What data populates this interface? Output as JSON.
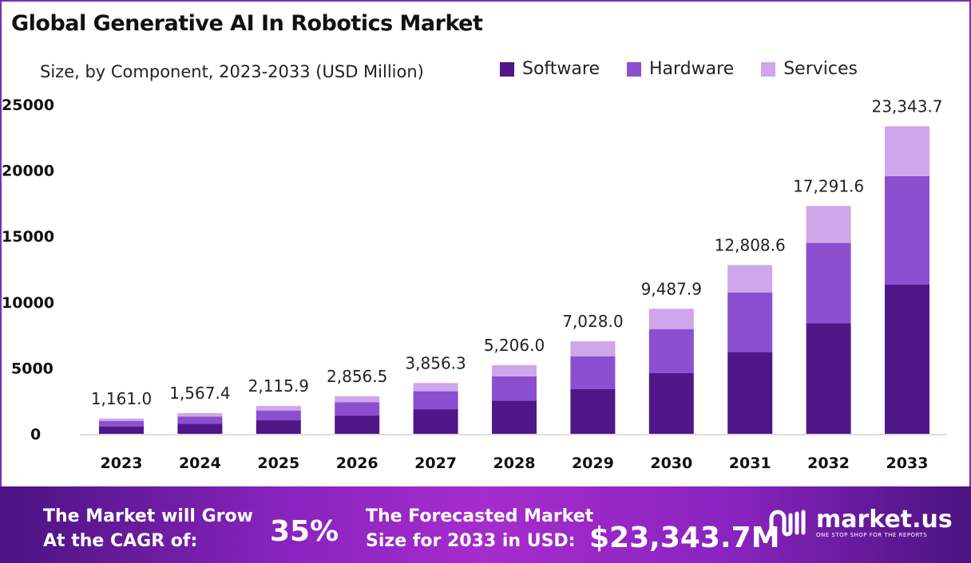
{
  "chart_data": {
    "type": "bar",
    "stacked": true,
    "title": "Global Generative AI In Robotics Market",
    "subtitle": "Size, by Component, 2023-2033 (USD Million)",
    "xlabel": "",
    "ylabel": "",
    "categories": [
      "2023",
      "2024",
      "2025",
      "2026",
      "2027",
      "2028",
      "2029",
      "2030",
      "2031",
      "2032",
      "2033"
    ],
    "series": [
      {
        "name": "Software",
        "color": "#4f1787",
        "values": [
          563.1,
          760.2,
          1026.2,
          1385.4,
          1870.3,
          2524.9,
          3408.6,
          4601.6,
          6212.2,
          8386.4,
          11321.7
        ]
      },
      {
        "name": "Hardware",
        "color": "#8b4fcf",
        "values": [
          409.8,
          553.3,
          746.9,
          1008.3,
          1361.3,
          1837.7,
          2480.9,
          3349.2,
          4521.4,
          6103.9,
          8240.3
        ]
      },
      {
        "name": "Services",
        "color": "#d0a6ea",
        "values": [
          188.1,
          253.9,
          342.8,
          462.8,
          624.7,
          843.4,
          1138.5,
          1537.1,
          2075.0,
          2801.3,
          3781.7
        ]
      }
    ],
    "totals": [
      "1,161.0",
      "1,567.4",
      "2,115.9",
      "2,856.5",
      "3,856.3",
      "5,206.0",
      "7,028.0",
      "9,487.9",
      "12,808.6",
      "17,291.6",
      "23,343.7"
    ],
    "total_values": [
      1161.0,
      1567.4,
      2115.9,
      2856.5,
      3856.3,
      5206.0,
      7028.0,
      9487.9,
      12808.6,
      17291.6,
      23343.7
    ],
    "ylim": [
      0,
      25000
    ],
    "yticks": [
      "0",
      "5000",
      "10000",
      "15000",
      "20000",
      "25000"
    ],
    "grid": false,
    "legend_position": "top-right"
  },
  "banner": {
    "cagr_label_1": "The Market will Grow",
    "cagr_label_2": "At the CAGR of:",
    "cagr_value": "35%",
    "forecast_label_1": "The Forecasted Market",
    "forecast_label_2": "Size for 2033 in USD:",
    "forecast_value": "$23,343.7M",
    "logo_name": "market.us",
    "logo_tagline": "ONE STOP SHOP FOR THE REPORTS"
  }
}
